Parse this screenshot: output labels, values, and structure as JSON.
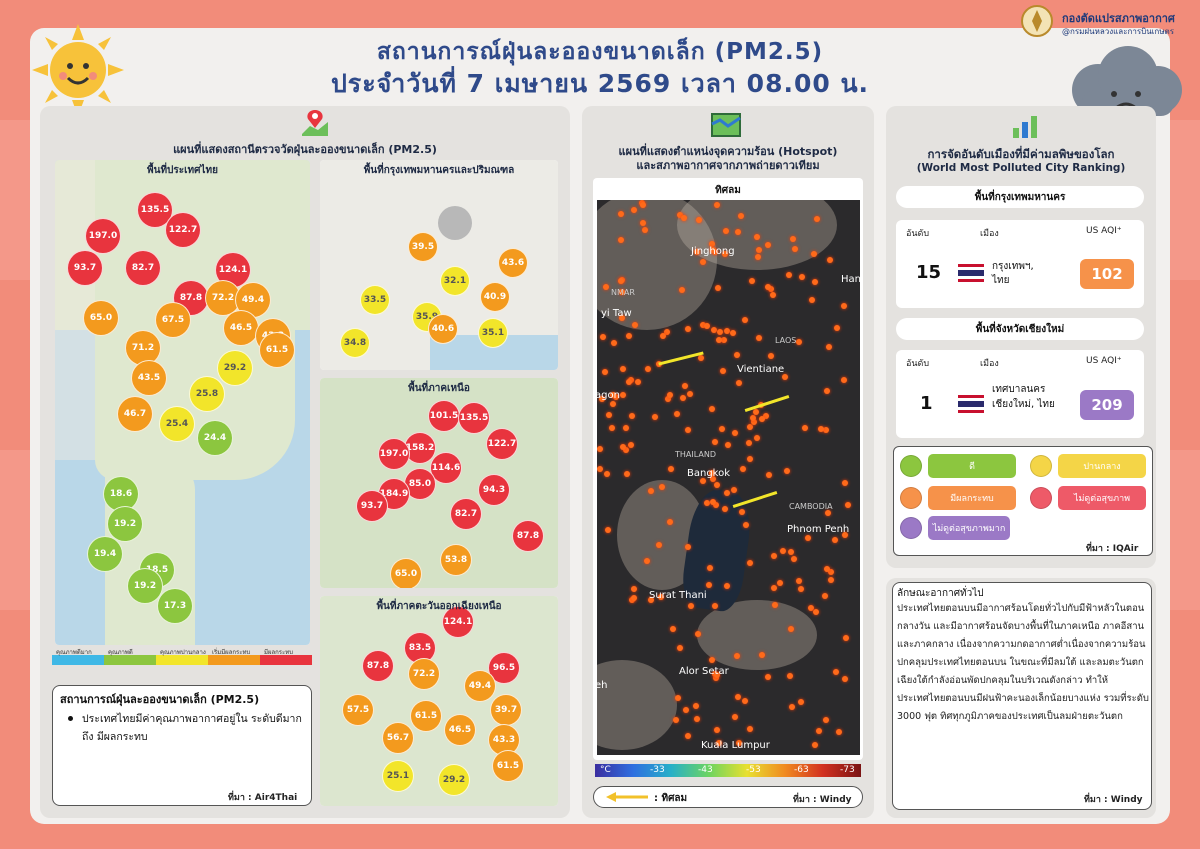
{
  "agency": {
    "name": "กองตัดแปรสภาพอากาศ",
    "sub": "@กรมฝนหลวงและการบินเกษตร"
  },
  "header": {
    "line1": "สถานการณ์ฝุ่นละอองขนาดเล็ก (PM2.5)",
    "line2": "ประจำวันที่ 7 เมษายน 2569 เวลา 08.00 น."
  },
  "left_panel": {
    "title": "แผนที่แสดงสถานีตรวจวัดฝุ่นละอองขนาดเล็ก (PM2.5)",
    "thailand": {
      "label": "พื้นที่ประเทศไทย",
      "stations": [
        {
          "v": "135.5",
          "c": "#e8343e"
        },
        {
          "v": "197.0",
          "c": "#e8343e"
        },
        {
          "v": "122.7",
          "c": "#e8343e"
        },
        {
          "v": "93.7",
          "c": "#e8343e"
        },
        {
          "v": "82.7",
          "c": "#e8343e"
        },
        {
          "v": "124.1",
          "c": "#e8343e"
        },
        {
          "v": "87.8",
          "c": "#e8343e"
        },
        {
          "v": "72.2",
          "c": "#f39a1e"
        },
        {
          "v": "49.4",
          "c": "#f39a1e"
        },
        {
          "v": "65.0",
          "c": "#f39a1e"
        },
        {
          "v": "67.5",
          "c": "#f39a1e"
        },
        {
          "v": "46.5",
          "c": "#f39a1e"
        },
        {
          "v": "43.3",
          "c": "#f39a1e"
        },
        {
          "v": "71.2",
          "c": "#f39a1e"
        },
        {
          "v": "61.5",
          "c": "#f39a1e"
        },
        {
          "v": "43.5",
          "c": "#f39a1e"
        },
        {
          "v": "29.2",
          "c": "#f2e52a"
        },
        {
          "v": "25.8",
          "c": "#f2e52a"
        },
        {
          "v": "46.7",
          "c": "#f39a1e"
        },
        {
          "v": "25.4",
          "c": "#f2e52a"
        },
        {
          "v": "24.4",
          "c": "#8cc63f"
        },
        {
          "v": "18.6",
          "c": "#8cc63f"
        },
        {
          "v": "19.2",
          "c": "#8cc63f"
        },
        {
          "v": "19.4",
          "c": "#8cc63f"
        },
        {
          "v": "18.5",
          "c": "#8cc63f"
        },
        {
          "v": "19.2",
          "c": "#8cc63f"
        },
        {
          "v": "17.3",
          "c": "#8cc63f"
        }
      ]
    },
    "bangkok": {
      "label": "พื้นที่กรุงเทพมหานครและปริมณฑล",
      "stations": [
        {
          "v": "39.5",
          "c": "#f39a1e"
        },
        {
          "v": "43.6",
          "c": "#f39a1e"
        },
        {
          "v": "33.5",
          "c": "#f2e52a"
        },
        {
          "v": "32.1",
          "c": "#f2e52a"
        },
        {
          "v": "40.9",
          "c": "#f39a1e"
        },
        {
          "v": "35.9",
          "c": "#f2e52a"
        },
        {
          "v": "40.6",
          "c": "#f39a1e"
        },
        {
          "v": "35.1",
          "c": "#f2e52a"
        },
        {
          "v": "34.8",
          "c": "#f2e52a"
        }
      ]
    },
    "north": {
      "label": "พื้นที่ภาคเหนือ",
      "stations": [
        {
          "v": "101.5",
          "c": "#e8343e"
        },
        {
          "v": "135.5",
          "c": "#e8343e"
        },
        {
          "v": "158.2",
          "c": "#e8343e"
        },
        {
          "v": "122.7",
          "c": "#e8343e"
        },
        {
          "v": "197.0",
          "c": "#e8343e"
        },
        {
          "v": "114.6",
          "c": "#e8343e"
        },
        {
          "v": "85.0",
          "c": "#e8343e"
        },
        {
          "v": "94.3",
          "c": "#e8343e"
        },
        {
          "v": "184.9",
          "c": "#e8343e"
        },
        {
          "v": "93.7",
          "c": "#e8343e"
        },
        {
          "v": "82.7",
          "c": "#e8343e"
        },
        {
          "v": "87.8",
          "c": "#e8343e"
        },
        {
          "v": "53.8",
          "c": "#f39a1e"
        },
        {
          "v": "65.0",
          "c": "#f39a1e"
        }
      ]
    },
    "northeast": {
      "label": "พื้นที่ภาคตะวันออกเฉียงเหนือ",
      "stations": [
        {
          "v": "124.1",
          "c": "#e8343e"
        },
        {
          "v": "83.5",
          "c": "#e8343e"
        },
        {
          "v": "87.8",
          "c": "#e8343e"
        },
        {
          "v": "72.2",
          "c": "#f39a1e"
        },
        {
          "v": "96.5",
          "c": "#e8343e"
        },
        {
          "v": "49.4",
          "c": "#f39a1e"
        },
        {
          "v": "57.5",
          "c": "#f39a1e"
        },
        {
          "v": "61.5",
          "c": "#f39a1e"
        },
        {
          "v": "46.5",
          "c": "#f39a1e"
        },
        {
          "v": "39.7",
          "c": "#f39a1e"
        },
        {
          "v": "56.7",
          "c": "#f39a1e"
        },
        {
          "v": "43.3",
          "c": "#f39a1e"
        },
        {
          "v": "61.5",
          "c": "#f39a1e"
        },
        {
          "v": "25.1",
          "c": "#f2e52a"
        },
        {
          "v": "29.2",
          "c": "#f2e52a"
        }
      ]
    },
    "legend": [
      {
        "label": "คุณภาพดีมาก",
        "color": "#3fb8e6"
      },
      {
        "label": "คุณภาพดี",
        "color": "#8cc63f"
      },
      {
        "label": "คุณภาพปานกลาง",
        "color": "#f2e52a"
      },
      {
        "label": "เริ่มมีผลกระทบ",
        "color": "#f39a1e"
      },
      {
        "label": "มีผลกระทบ",
        "color": "#e8343e"
      }
    ],
    "summary": {
      "title": "สถานการณ์ฝุ่นละอองขนาดเล็ก (PM2.5)",
      "bullet": "ประเทศไทยมีค่าคุณภาพอากาศอยู่ใน ระดับดีมาก ถึง มีผลกระทบ",
      "source": "ที่มา : Air4Thai"
    }
  },
  "middle_panel": {
    "title1": "แผนที่แสดงตำแหน่งจุดความร้อน (Hotspot)",
    "title2": "และสภาพอากาศจากภาพถ่ายดาวเทียม",
    "map_label": "ทิศลม",
    "places": [
      "Jinghong",
      "Hano",
      "NMAR",
      "yi Taw",
      "LAOS",
      "Vientiane",
      "agon",
      "THAILAND",
      "Bangkok",
      "CAMBODIA",
      "Phnom Penh",
      "Surat Thani",
      "Alor Setar",
      "eh",
      "Kuala Lumpur"
    ],
    "colorbar": [
      "°C",
      "-33",
      "-43",
      "-53",
      "-63",
      "-73"
    ],
    "wind_legend": ": ทิศลม",
    "source": "ที่มา : Windy"
  },
  "right_panel": {
    "title1": "การจัดอันดับเมืองที่มีค่ามลพิษของโลก",
    "title2": "(World Most Polluted City Ranking)",
    "bkk_section": "พื้นที่กรุงเทพมหานคร",
    "cm_section": "พื้นที่จังหวัดเชียงใหม่",
    "col_rank": "อันดับ",
    "col_city": "เมือง",
    "col_aqi": "US AQI⁺",
    "bkk": {
      "rank": "15",
      "city": "กรุงเทพฯ, ไทย",
      "aqi": "102",
      "color": "#f6924a"
    },
    "cm": {
      "rank": "1",
      "city": "เทศบาลนคร เชียงใหม่, ไทย",
      "aqi": "209",
      "color": "#9b79c6"
    },
    "levels": [
      {
        "label": "ดี",
        "color": "#8cc63f",
        "face": "#8cc63f"
      },
      {
        "label": "ปานกลาง",
        "color": "#f4d547",
        "face": "#f4d547"
      },
      {
        "label": "มีผลกระทบ",
        "color": "#f6924a",
        "face": "#f6924a"
      },
      {
        "label": "ไม่ดูต่อสุขภาพ",
        "color": "#ee5a68",
        "face": "#ee5a68"
      },
      {
        "label": "ไม่ดูต่อสุขภาพมาก",
        "color": "#9b79c6",
        "face": "#9b79c6"
      }
    ],
    "level_source": "ที่มา : IQAir",
    "weather_title": "ลักษณะอากาศทั่วไป",
    "weather_text": "ประเทศไทยตอนบนมีอากาศร้อนโดยทั่วไปกับมีฟ้าหลัวในตอนกลางวัน และมีอากาศร้อนจัดบางพื้นที่ในภาคเหนือ ภาคอีสาน และภาคกลาง เนื่องจากความกดอากาศต่ำเนื่องจากความร้อนปกคลุมประเทศไทยตอนบน ในขณะที่มีลมใต้ และลมตะวันตกเฉียงใต้กำลังอ่อนพัดปกคลุมในบริเวณดังกล่าว ทำให้ประเทศไทยตอนบนมีฝนฟ้าคะนองเล็กน้อยบางแห่ง รวมที่ระดับ 3000 ฟุต ทิศทุกภูมิภาคของประเทศเป็นลมฝ่ายตะวันตก",
    "weather_source": "ที่มา : Windy"
  }
}
